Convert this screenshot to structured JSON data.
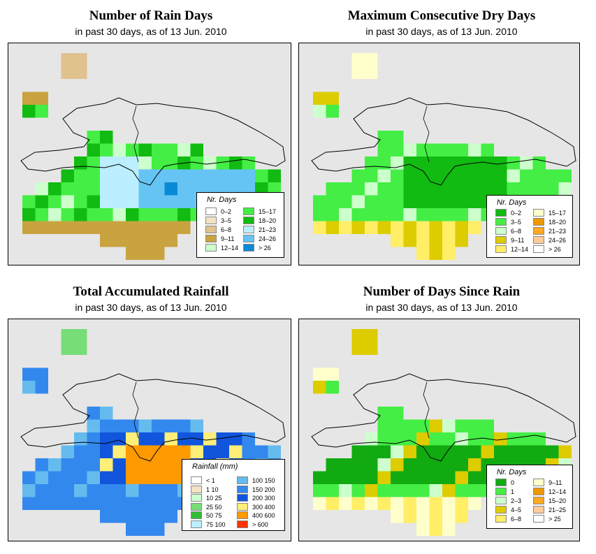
{
  "panels": [
    {
      "title": "Number of Rain Days",
      "subtitle": "in past 30 days, as of  13 Jun. 2010",
      "legend_title": "Nr. Days",
      "legend": [
        {
          "label": "0–2",
          "color": "#ffffff"
        },
        {
          "label": "3–5",
          "color": "#f3e3c5"
        },
        {
          "label": "6–8",
          "color": "#e0c28f"
        },
        {
          "label": "9–11",
          "color": "#c9a33f"
        },
        {
          "label": "12–14",
          "color": "#ccffcc"
        },
        {
          "label": "15–17",
          "color": "#44ee44"
        },
        {
          "label": "18–20",
          "color": "#11bb11"
        },
        {
          "label": "21–23",
          "color": "#bbeeff"
        },
        {
          "label": "24–26",
          "color": "#66c4f5"
        },
        {
          "label": "> 26",
          "color": "#0a8ad6"
        }
      ]
    },
    {
      "title": "Maximum Consecutive Dry Days",
      "subtitle": "in past 30 days, as of  13 Jun. 2010",
      "legend_title": "Nr. Days",
      "legend": [
        {
          "label": "0–2",
          "color": "#11bb11"
        },
        {
          "label": "3–5",
          "color": "#44ee44"
        },
        {
          "label": "6–8",
          "color": "#ccffcc"
        },
        {
          "label": "9–11",
          "color": "#ddcc00"
        },
        {
          "label": "12–14",
          "color": "#ffee66"
        },
        {
          "label": "15–17",
          "color": "#ffffcc"
        },
        {
          "label": "18–20",
          "color": "#ee9900"
        },
        {
          "label": "21–23",
          "color": "#ffaa22"
        },
        {
          "label": "24–26",
          "color": "#ffcc99"
        },
        {
          "label": "> 26",
          "color": "#ffffff"
        }
      ]
    },
    {
      "title": "Total Accumulated Rainfall",
      "subtitle": "in past 30 days, as of  13 Jun. 2010",
      "legend_title": "Rainfall (mm)",
      "legend": [
        {
          "label": "< 1",
          "color": "#ffffff"
        },
        {
          "label": "1    10",
          "color": "#f3e3c5"
        },
        {
          "label": "10    25",
          "color": "#ccffcc"
        },
        {
          "label": "25    50",
          "color": "#77dd77"
        },
        {
          "label": "50    75",
          "color": "#33bb33"
        },
        {
          "label": "75   100",
          "color": "#bbeeff"
        },
        {
          "label": "100  150",
          "color": "#66bbee"
        },
        {
          "label": "150  200",
          "color": "#3388ee"
        },
        {
          "label": "200  300",
          "color": "#1155dd"
        },
        {
          "label": "300  400",
          "color": "#ffee77"
        },
        {
          "label": "400  600",
          "color": "#ff9900"
        },
        {
          "label": "> 600",
          "color": "#ff3300"
        }
      ]
    },
    {
      "title": "Number of Days Since Rain",
      "subtitle": "in past 30 days, as of  13 Jun. 2010",
      "legend_title": "Nr. Days",
      "legend": [
        {
          "label": "0",
          "color": "#11aa11"
        },
        {
          "label": "1",
          "color": "#44ee44"
        },
        {
          "label": "2–3",
          "color": "#ccffcc"
        },
        {
          "label": "4–5",
          "color": "#ddcc00"
        },
        {
          "label": "6–8",
          "color": "#ffee66"
        },
        {
          "label": "9–11",
          "color": "#ffffcc"
        },
        {
          "label": "12–14",
          "color": "#ee9900"
        },
        {
          "label": "15–20",
          "color": "#ffaa22"
        },
        {
          "label": "21–25",
          "color": "#ffcc99"
        },
        {
          "label": "> 25",
          "color": "#ffffff"
        }
      ]
    }
  ],
  "colors": {
    "map_background": "#e6e6e6",
    "frame": "#000000"
  }
}
